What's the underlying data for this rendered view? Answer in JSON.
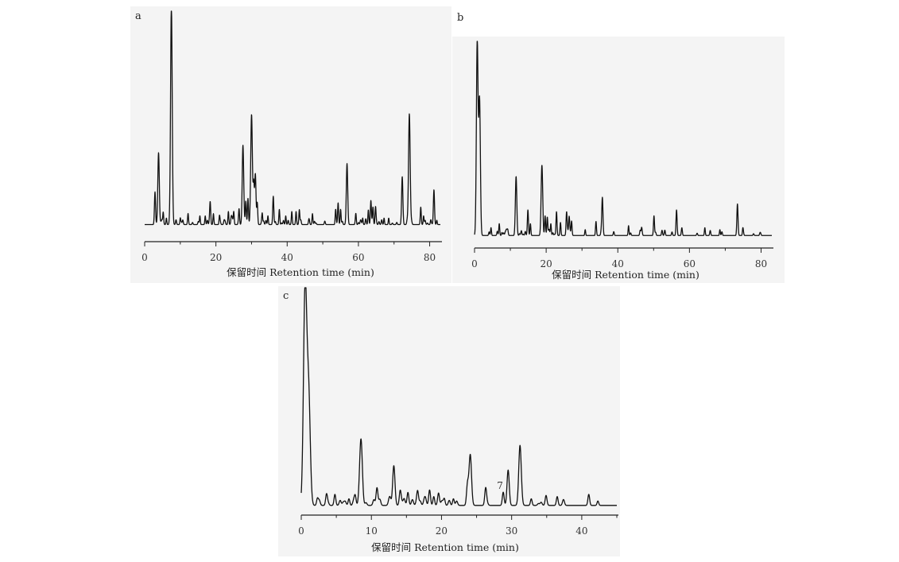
{
  "chart_data": [
    {
      "type": "line",
      "panel_label": "a",
      "xlabel": "保留时间 Retention time (min)",
      "xlim": [
        0,
        83
      ],
      "xticks": [
        0,
        20,
        40,
        60,
        80
      ],
      "ylim": [
        0,
        100
      ],
      "baseline": 2,
      "noise_seed": 11,
      "noise_range": [
        2,
        82
      ],
      "noise_count": 60,
      "peaks": [
        {
          "x": 2.9,
          "y": 15
        },
        {
          "x": 3.9,
          "y": 33
        },
        {
          "x": 5.2,
          "y": 4
        },
        {
          "x": 6.1,
          "y": 3
        },
        {
          "x": 7.5,
          "y": 99
        },
        {
          "x": 10.0,
          "y": 3
        },
        {
          "x": 12.2,
          "y": 3
        },
        {
          "x": 15.5,
          "y": 4
        },
        {
          "x": 17.0,
          "y": 4
        },
        {
          "x": 18.4,
          "y": 10
        },
        {
          "x": 19.3,
          "y": 5
        },
        {
          "x": 21.0,
          "y": 4
        },
        {
          "x": 23.5,
          "y": 6
        },
        {
          "x": 25.0,
          "y": 6
        },
        {
          "x": 26.5,
          "y": 7
        },
        {
          "x": 27.6,
          "y": 34
        },
        {
          "x": 28.4,
          "y": 10
        },
        {
          "x": 29.0,
          "y": 12
        },
        {
          "x": 30.0,
          "y": 50
        },
        {
          "x": 30.6,
          "y": 18
        },
        {
          "x": 31.1,
          "y": 20
        },
        {
          "x": 31.6,
          "y": 10
        },
        {
          "x": 33.0,
          "y": 5
        },
        {
          "x": 34.6,
          "y": 4
        },
        {
          "x": 36.1,
          "y": 13
        },
        {
          "x": 37.8,
          "y": 7
        },
        {
          "x": 39.6,
          "y": 4
        },
        {
          "x": 41.3,
          "y": 6
        },
        {
          "x": 42.5,
          "y": 6
        },
        {
          "x": 43.4,
          "y": 5
        },
        {
          "x": 47.1,
          "y": 5
        },
        {
          "x": 53.6,
          "y": 6
        },
        {
          "x": 54.3,
          "y": 10
        },
        {
          "x": 55.0,
          "y": 7
        },
        {
          "x": 56.8,
          "y": 28
        },
        {
          "x": 59.3,
          "y": 3
        },
        {
          "x": 61.2,
          "y": 3
        },
        {
          "x": 62.8,
          "y": 6
        },
        {
          "x": 63.5,
          "y": 11
        },
        {
          "x": 64.1,
          "y": 6
        },
        {
          "x": 64.8,
          "y": 8
        },
        {
          "x": 67.2,
          "y": 3
        },
        {
          "x": 68.5,
          "y": 3
        },
        {
          "x": 72.3,
          "y": 22
        },
        {
          "x": 74.3,
          "y": 49
        },
        {
          "x": 77.5,
          "y": 8
        },
        {
          "x": 78.3,
          "y": 4
        },
        {
          "x": 80.3,
          "y": 2
        },
        {
          "x": 81.2,
          "y": 16
        },
        {
          "x": 82.0,
          "y": 2
        }
      ]
    },
    {
      "type": "line",
      "panel_label": "b",
      "xlabel": "保留时间 Retention time (min)",
      "xlim": [
        0,
        83
      ],
      "xticks": [
        0,
        20,
        40,
        60,
        80
      ],
      "ylim": [
        0,
        100
      ],
      "baseline": 1.5,
      "noise_seed": 23,
      "noise_range": [
        3,
        80
      ],
      "noise_count": 45,
      "peaks": [
        {
          "x": 0.75,
          "y": 99
        },
        {
          "x": 1.4,
          "y": 69
        },
        {
          "x": 4.6,
          "y": 4
        },
        {
          "x": 6.9,
          "y": 6
        },
        {
          "x": 11.6,
          "y": 30
        },
        {
          "x": 14.9,
          "y": 13
        },
        {
          "x": 15.6,
          "y": 6
        },
        {
          "x": 18.8,
          "y": 35
        },
        {
          "x": 19.7,
          "y": 10
        },
        {
          "x": 20.3,
          "y": 8
        },
        {
          "x": 21.3,
          "y": 6
        },
        {
          "x": 22.9,
          "y": 9
        },
        {
          "x": 24.0,
          "y": 6
        },
        {
          "x": 25.7,
          "y": 12
        },
        {
          "x": 26.4,
          "y": 9
        },
        {
          "x": 27.1,
          "y": 7
        },
        {
          "x": 30.9,
          "y": 3
        },
        {
          "x": 33.9,
          "y": 6
        },
        {
          "x": 35.7,
          "y": 18
        },
        {
          "x": 43.0,
          "y": 5
        },
        {
          "x": 50.1,
          "y": 10
        },
        {
          "x": 56.4,
          "y": 13
        },
        {
          "x": 64.3,
          "y": 4
        },
        {
          "x": 68.5,
          "y": 3
        },
        {
          "x": 73.4,
          "y": 16
        },
        {
          "x": 74.9,
          "y": 3
        }
      ]
    },
    {
      "type": "line",
      "panel_label": "c",
      "xlabel": "保留时间 Retention time (min)",
      "xlim": [
        0,
        45
      ],
      "xticks": [
        0,
        10,
        20,
        30,
        40
      ],
      "ylim": [
        0,
        100
      ],
      "baseline": 1.5,
      "noise_seed": 37,
      "noise_range": [
        2,
        44
      ],
      "noise_count": 35,
      "annotation": "7",
      "peaks": [
        {
          "x": 0.55,
          "y": 99
        },
        {
          "x": 1.05,
          "y": 50
        },
        {
          "x": 2.3,
          "y": 3
        },
        {
          "x": 3.6,
          "y": 5
        },
        {
          "x": 4.8,
          "y": 5
        },
        {
          "x": 6.8,
          "y": 3
        },
        {
          "x": 7.7,
          "y": 4
        },
        {
          "x": 8.5,
          "y": 28
        },
        {
          "x": 10.8,
          "y": 8
        },
        {
          "x": 13.2,
          "y": 18
        },
        {
          "x": 14.1,
          "y": 6
        },
        {
          "x": 15.2,
          "y": 4
        },
        {
          "x": 16.6,
          "y": 6
        },
        {
          "x": 18.3,
          "y": 7
        },
        {
          "x": 18.9,
          "y": 4
        },
        {
          "x": 19.6,
          "y": 3
        },
        {
          "x": 20.4,
          "y": 3
        },
        {
          "x": 21.7,
          "y": 3
        },
        {
          "x": 23.7,
          "y": 9
        },
        {
          "x": 24.1,
          "y": 23
        },
        {
          "x": 26.3,
          "y": 8
        },
        {
          "x": 28.8,
          "y": 6
        },
        {
          "x": 29.5,
          "y": 16
        },
        {
          "x": 31.2,
          "y": 25
        },
        {
          "x": 32.8,
          "y": 3
        },
        {
          "x": 34.9,
          "y": 2
        },
        {
          "x": 36.5,
          "y": 4
        },
        {
          "x": 41.0,
          "y": 5
        },
        {
          "x": 42.3,
          "y": 2
        }
      ]
    }
  ]
}
